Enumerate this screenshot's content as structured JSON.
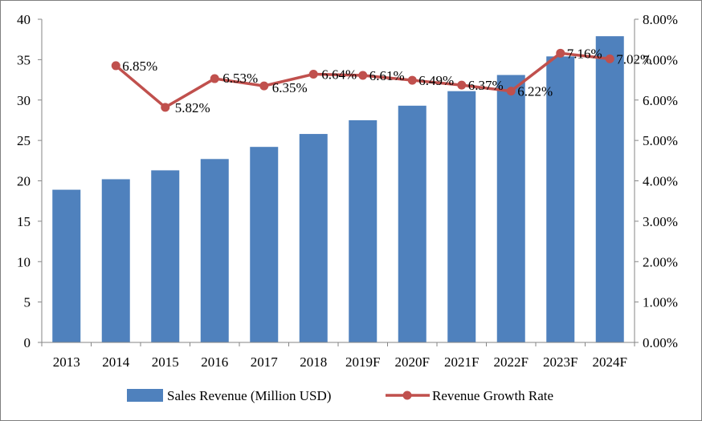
{
  "chart_data": {
    "type": "bar",
    "categories": [
      "2013",
      "2014",
      "2015",
      "2016",
      "2017",
      "2018",
      "2019F",
      "2020F",
      "2021F",
      "2022F",
      "2023F",
      "2024F"
    ],
    "series": [
      {
        "name": "Sales Revenue (Million USD)",
        "type": "bar",
        "axis": "left",
        "color": "#4f81bd",
        "values": [
          18.9,
          20.2,
          21.3,
          22.7,
          24.2,
          25.8,
          27.5,
          29.3,
          31.1,
          33.1,
          35.4,
          37.9
        ]
      },
      {
        "name": "Revenue Growth Rate",
        "type": "line",
        "axis": "right",
        "color": "#c0504d",
        "values": [
          null,
          6.85,
          5.82,
          6.53,
          6.35,
          6.64,
          6.61,
          6.49,
          6.37,
          6.22,
          7.16,
          7.02
        ],
        "labels": [
          null,
          "6.85%",
          "5.82%",
          "6.53%",
          "6.35%",
          "6.64%",
          "6.61%",
          "6.49%",
          "6.37%",
          "6.22%",
          "7.16%",
          "7.02%"
        ]
      }
    ],
    "left_axis": {
      "ylim": [
        0,
        40
      ],
      "ticks": [
        0,
        5,
        10,
        15,
        20,
        25,
        30,
        35,
        40
      ],
      "tick_labels": [
        "0",
        "5",
        "10",
        "15",
        "20",
        "25",
        "30",
        "35",
        "40"
      ]
    },
    "right_axis": {
      "ylim": [
        0,
        8
      ],
      "ticks": [
        0,
        1,
        2,
        3,
        4,
        5,
        6,
        7,
        8
      ],
      "tick_labels": [
        "0.00%",
        "1.00%",
        "2.00%",
        "3.00%",
        "4.00%",
        "5.00%",
        "6.00%",
        "7.00%",
        "8.00%"
      ]
    },
    "grid": false,
    "legend_position": "bottom",
    "legend": [
      "Sales Revenue (Million USD)",
      "Revenue Growth Rate"
    ]
  }
}
